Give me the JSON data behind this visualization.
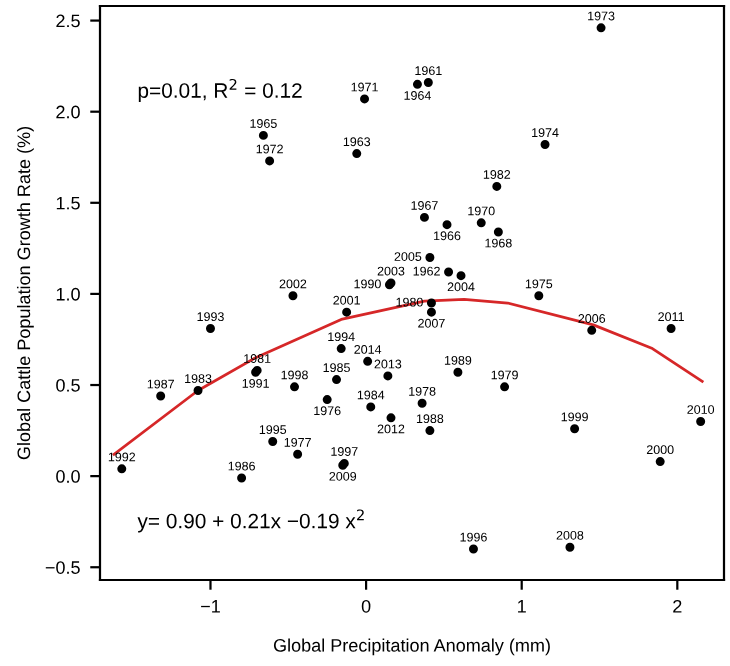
{
  "chart_data": {
    "type": "scatter",
    "xlabel": "Global Precipitation Anomaly (mm)",
    "ylabel": "Global Cattle Population Growth Rate (%)",
    "xlim": [
      -1.71,
      2.3
    ],
    "ylim": [
      -0.57,
      2.58
    ],
    "xticks": [
      {
        "value": -1,
        "label": "−1"
      },
      0,
      1,
      2
    ],
    "yticks": [
      {
        "value": -0.5,
        "label": "−0.5"
      },
      {
        "value": 0,
        "label": "0.0"
      },
      0.5,
      {
        "value": 1,
        "label": "1.0"
      },
      1.5,
      {
        "value": 2,
        "label": "2.0"
      },
      2.5
    ],
    "grid": false,
    "legend": false,
    "marker": "circle",
    "annotations": [
      "p=0.01, R$^{2}$ = 0.12",
      "y= 0.90 + 0.21x −0.19 x$^{2}$",
      {
        "text": "1971",
        "x": -0.01,
        "y": 2.07
      },
      {
        "text": "1965",
        "x": -0.66,
        "y": 1.87
      },
      {
        "text": "1972",
        "x": -0.62,
        "y": 1.73
      },
      {
        "text": "1963",
        "x": -0.06,
        "y": 1.77
      },
      {
        "text": "1964",
        "x": 0.33,
        "y": 2.15
      },
      {
        "text": "1961",
        "x": 0.4,
        "y": 2.16
      },
      {
        "text": "1973",
        "x": 1.51,
        "y": 2.46
      },
      {
        "text": "1974",
        "x": 1.15,
        "y": 1.82
      },
      {
        "text": "1982",
        "x": 0.84,
        "y": 1.59
      },
      {
        "text": "1967",
        "x": 0.375,
        "y": 1.42
      },
      {
        "text": "1966",
        "x": 0.52,
        "y": 1.38
      },
      {
        "text": "1970",
        "x": 0.74,
        "y": 1.39
      },
      {
        "text": "1968",
        "x": 0.85,
        "y": 1.34
      },
      {
        "text": "2005",
        "x": 0.41,
        "y": 1.2
      },
      {
        "text": "1962",
        "x": 0.53,
        "y": 1.12
      },
      {
        "text": "2004",
        "x": 0.61,
        "y": 1.1
      },
      {
        "text": "1975",
        "x": 1.11,
        "y": 0.99
      },
      {
        "text": "1980",
        "x": 0.42,
        "y": 0.95
      },
      {
        "text": "2007",
        "x": 0.42,
        "y": 0.9
      },
      {
        "text": "2006",
        "x": 1.45,
        "y": 0.8
      },
      {
        "text": "2011",
        "x": 1.96,
        "y": 0.81
      },
      {
        "text": "1989",
        "x": 0.59,
        "y": 0.57
      },
      {
        "text": "1979",
        "x": 0.89,
        "y": 0.49
      },
      {
        "text": "1978",
        "x": 0.36,
        "y": 0.4
      },
      {
        "text": "1988",
        "x": 0.41,
        "y": 0.25
      },
      {
        "text": "1999",
        "x": 1.34,
        "y": 0.26
      },
      {
        "text": "2010",
        "x": 2.15,
        "y": 0.3
      },
      {
        "text": "2000",
        "x": 1.89,
        "y": 0.08
      },
      {
        "text": "1996",
        "x": 0.69,
        "y": -0.4
      },
      {
        "text": "2008",
        "x": 1.31,
        "y": -0.39
      },
      {
        "text": "2002",
        "x": -0.47,
        "y": 0.99
      },
      {
        "text": "1993",
        "x": -1.0,
        "y": 0.81
      },
      {
        "text": "2001",
        "x": -0.125,
        "y": 0.9
      },
      {
        "text": "1990",
        "x": 0.15,
        "y": 1.05
      },
      {
        "text": "2003",
        "x": 0.16,
        "y": 1.06
      },
      {
        "text": "1991",
        "x": -0.71,
        "y": 0.57
      },
      {
        "text": "1981",
        "x": -0.7,
        "y": 0.58
      },
      {
        "text": "1987",
        "x": -1.32,
        "y": 0.44
      },
      {
        "text": "1983",
        "x": -1.08,
        "y": 0.47
      },
      {
        "text": "1992",
        "x": -1.57,
        "y": 0.04
      },
      {
        "text": "1986",
        "x": -0.8,
        "y": -0.01
      },
      {
        "text": "1998",
        "x": -0.46,
        "y": 0.49
      },
      {
        "text": "1995",
        "x": -0.6,
        "y": 0.19
      },
      {
        "text": "1977",
        "x": -0.44,
        "y": 0.12
      },
      {
        "text": "1994",
        "x": -0.16,
        "y": 0.7
      },
      {
        "text": "2014",
        "x": 0.01,
        "y": 0.63
      },
      {
        "text": "1985",
        "x": -0.19,
        "y": 0.53
      },
      {
        "text": "2013",
        "x": 0.14,
        "y": 0.55
      },
      {
        "text": "1976",
        "x": -0.25,
        "y": 0.42
      },
      {
        "text": "1984",
        "x": 0.03,
        "y": 0.38
      },
      {
        "text": "2012",
        "x": 0.16,
        "y": 0.32
      },
      {
        "text": "2009",
        "x": -0.15,
        "y": 0.06
      },
      {
        "text": "1997",
        "x": -0.14,
        "y": 0.07
      }
    ],
    "series": [
      {
        "color": "#000000",
        "x": [
          -0.01,
          -0.66,
          -0.62,
          -0.06,
          0.33,
          0.4,
          1.51,
          1.15,
          0.84,
          0.375,
          0.52,
          0.74,
          0.85,
          0.41,
          0.53,
          0.61,
          1.11,
          0.42,
          0.42,
          1.45,
          1.96,
          0.59,
          0.89,
          0.36,
          0.41,
          1.34,
          2.15,
          1.89,
          0.69,
          1.31,
          -0.47,
          -1.0,
          -0.125,
          0.15,
          0.16,
          -0.71,
          -0.7,
          -1.32,
          -1.08,
          -1.57,
          -0.8,
          -0.46,
          -0.6,
          -0.44,
          -0.16,
          0.01,
          -0.19,
          0.14,
          -0.25,
          0.03,
          0.16,
          -0.15,
          -0.14
        ],
        "values": [
          2.07,
          1.87,
          1.73,
          1.77,
          2.15,
          2.16,
          2.46,
          1.82,
          1.59,
          1.42,
          1.38,
          1.39,
          1.34,
          1.2,
          1.12,
          1.1,
          0.99,
          0.95,
          0.9,
          0.8,
          0.81,
          0.57,
          0.49,
          0.4,
          0.25,
          0.26,
          0.3,
          0.08,
          -0.4,
          -0.39,
          0.99,
          0.81,
          0.9,
          1.05,
          1.06,
          0.57,
          0.58,
          0.44,
          0.47,
          0.04,
          -0.01,
          0.49,
          0.19,
          0.12,
          0.7,
          0.63,
          0.53,
          0.55,
          0.42,
          0.38,
          0.32,
          0.06,
          0.07
        ]
      },
      {
        "type": "line",
        "color": "#d62728",
        "marker": "none",
        "line_style": "solid",
        "x": [
          -1.62,
          -1.08,
          -0.71,
          -0.16,
          0.375,
          0.63,
          0.91,
          1.46,
          1.84,
          2.16
        ],
        "values": [
          0.12,
          0.47,
          0.65,
          0.86,
          0.96,
          0.97,
          0.95,
          0.83,
          0.7,
          0.52
        ]
      }
    ]
  }
}
